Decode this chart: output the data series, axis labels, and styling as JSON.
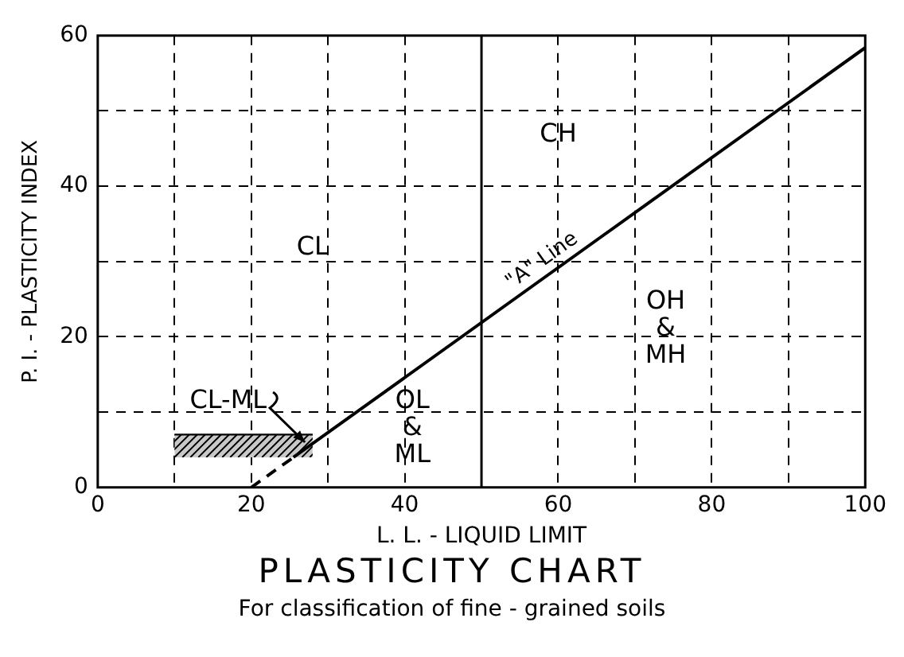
{
  "chart_data": {
    "type": "line",
    "title": "PLASTICITY CHART",
    "subtitle": "For classification of fine - grained soils",
    "xlabel": "L. L. - LIQUID LIMIT",
    "ylabel": "P. I. - PLASTICITY INDEX",
    "xlim": [
      0,
      100
    ],
    "ylim": [
      0,
      60
    ],
    "xticks": [
      0,
      {
        "value": 10,
        "label": null
      },
      20,
      {
        "value": 30,
        "label": null
      },
      40,
      {
        "value": 50,
        "label": null
      },
      60,
      {
        "value": 70,
        "label": null
      },
      80,
      {
        "value": 90,
        "label": null
      },
      100
    ],
    "yticks": [
      0,
      {
        "value": 10,
        "label": null
      },
      20,
      {
        "value": 30,
        "label": null
      },
      40,
      {
        "value": 50,
        "label": null
      },
      60
    ],
    "grid": true,
    "legend": false,
    "marker": "none",
    "series": [
      {
        "color": "#000000",
        "x": [
          20,
          25.5
        ],
        "values": [
          0,
          4
        ],
        "line_style": "dashed"
      },
      {
        "name": "\"A\" Line",
        "color": "#000000",
        "x": [
          25.5,
          100
        ],
        "values": [
          4,
          58.4
        ],
        "line_style": "solid"
      },
      {
        "color": "#000000",
        "x": [
          10,
          28
        ],
        "values": [
          7,
          7
        ],
        "lower": [
          4,
          4
        ],
        "upper": [
          7,
          7
        ]
      }
    ],
    "ref_lines": [
      {
        "axis": "x",
        "value": 50,
        "color": "#000000",
        "line_style": "solid"
      }
    ],
    "annotations": [
      "CH",
      "CL",
      {
        "text": "CL-ML",
        "x": 27,
        "y": 6
      },
      "OL & ML",
      "OH & MH"
    ]
  }
}
